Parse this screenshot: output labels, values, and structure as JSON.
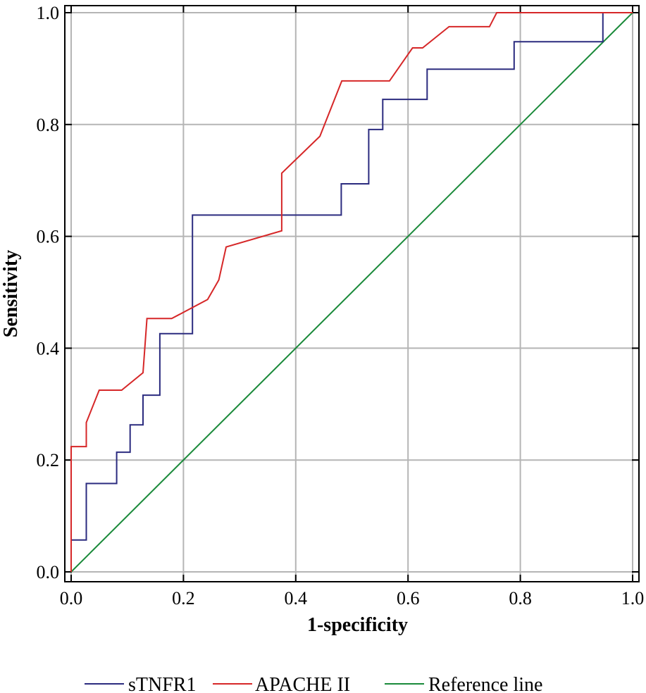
{
  "chart_data": {
    "type": "line",
    "xlabel": "1-specificity",
    "ylabel": "Sensitivity",
    "xlim": [
      0,
      1
    ],
    "ylim": [
      0,
      1
    ],
    "xticks": [
      "0.0",
      "0.2",
      "0.4",
      "0.6",
      "0.8",
      "1.0"
    ],
    "yticks": [
      "0.0",
      "0.2",
      "0.4",
      "0.6",
      "0.8",
      "1.0"
    ],
    "grid": true,
    "legend_position": "bottom",
    "series": [
      {
        "name": "sTNFR1",
        "color": "#2b2b7f",
        "points": [
          [
            0.0,
            0.0
          ],
          [
            0.0,
            0.057
          ],
          [
            0.027,
            0.057
          ],
          [
            0.027,
            0.158
          ],
          [
            0.081,
            0.158
          ],
          [
            0.081,
            0.214
          ],
          [
            0.105,
            0.214
          ],
          [
            0.105,
            0.263
          ],
          [
            0.128,
            0.263
          ],
          [
            0.128,
            0.316
          ],
          [
            0.158,
            0.316
          ],
          [
            0.158,
            0.426
          ],
          [
            0.216,
            0.426
          ],
          [
            0.216,
            0.638
          ],
          [
            0.481,
            0.638
          ],
          [
            0.481,
            0.694
          ],
          [
            0.53,
            0.694
          ],
          [
            0.53,
            0.791
          ],
          [
            0.555,
            0.791
          ],
          [
            0.555,
            0.845
          ],
          [
            0.634,
            0.845
          ],
          [
            0.634,
            0.899
          ],
          [
            0.789,
            0.899
          ],
          [
            0.789,
            0.948
          ],
          [
            0.947,
            0.948
          ],
          [
            0.947,
            1.0
          ],
          [
            1.0,
            1.0
          ]
        ]
      },
      {
        "name": "APACHE II",
        "color": "#d62728",
        "points": [
          [
            0.0,
            0.0
          ],
          [
            0.0,
            0.224
          ],
          [
            0.027,
            0.224
          ],
          [
            0.027,
            0.267
          ],
          [
            0.05,
            0.325
          ],
          [
            0.09,
            0.325
          ],
          [
            0.128,
            0.356
          ],
          [
            0.135,
            0.453
          ],
          [
            0.179,
            0.453
          ],
          [
            0.243,
            0.487
          ],
          [
            0.263,
            0.522
          ],
          [
            0.276,
            0.581
          ],
          [
            0.375,
            0.61
          ],
          [
            0.375,
            0.713
          ],
          [
            0.443,
            0.779
          ],
          [
            0.482,
            0.878
          ],
          [
            0.567,
            0.878
          ],
          [
            0.608,
            0.937
          ],
          [
            0.626,
            0.937
          ],
          [
            0.673,
            0.975
          ],
          [
            0.745,
            0.975
          ],
          [
            0.758,
            1.0
          ],
          [
            1.0,
            1.0
          ]
        ]
      },
      {
        "name": "Reference line",
        "color": "#1a8a3a",
        "points": [
          [
            0.0,
            0.0
          ],
          [
            1.0,
            1.0
          ]
        ]
      }
    ]
  }
}
